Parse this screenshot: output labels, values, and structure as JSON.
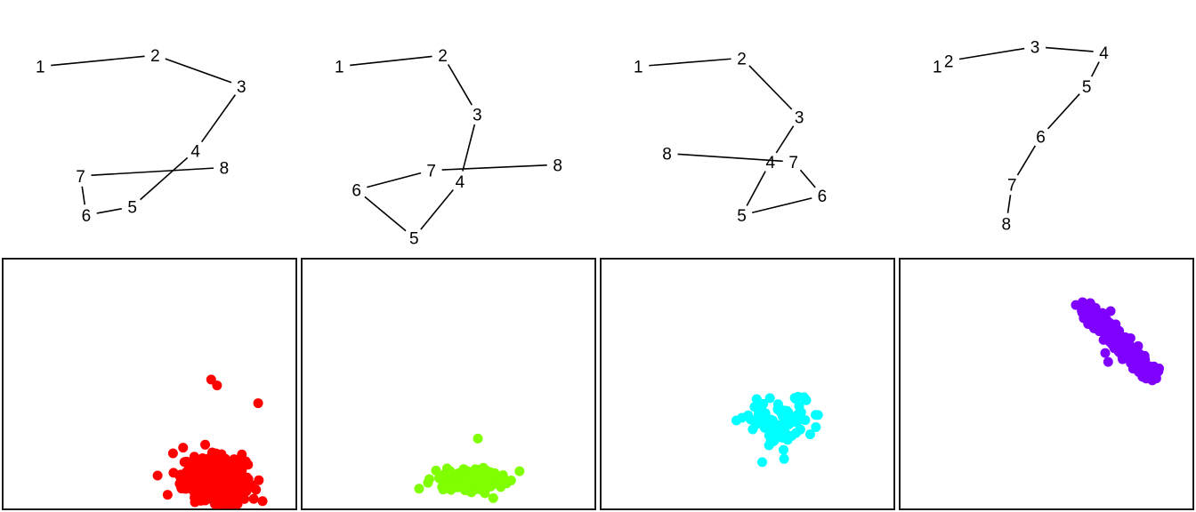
{
  "chart_data": [
    {
      "type": "line",
      "points": [
        {
          "label": "1",
          "x": 1.0,
          "y": 1.0
        },
        {
          "label": "2",
          "x": 3.0,
          "y": 1.4
        },
        {
          "label": "3",
          "x": 4.5,
          "y": 0.3
        },
        {
          "label": "4",
          "x": 3.7,
          "y": -2.0
        },
        {
          "label": "5",
          "x": 2.6,
          "y": -4.0
        },
        {
          "label": "6",
          "x": 1.8,
          "y": -4.3
        },
        {
          "label": "7",
          "x": 1.7,
          "y": -2.9
        },
        {
          "label": "8",
          "x": 4.2,
          "y": -2.6
        }
      ]
    },
    {
      "type": "line",
      "points": [
        {
          "label": "1",
          "x": 1.0,
          "y": 1.0
        },
        {
          "label": "2",
          "x": 2.8,
          "y": 1.4
        },
        {
          "label": "3",
          "x": 3.4,
          "y": -0.7
        },
        {
          "label": "4",
          "x": 3.1,
          "y": -3.1
        },
        {
          "label": "5",
          "x": 2.3,
          "y": -5.1
        },
        {
          "label": "6",
          "x": 1.3,
          "y": -3.4
        },
        {
          "label": "7",
          "x": 2.6,
          "y": -2.7
        },
        {
          "label": "8",
          "x": 4.8,
          "y": -2.5
        }
      ]
    },
    {
      "type": "line",
      "points": [
        {
          "label": "1",
          "x": 1.0,
          "y": 1.0
        },
        {
          "label": "2",
          "x": 2.8,
          "y": 1.3
        },
        {
          "label": "3",
          "x": 3.8,
          "y": -0.8
        },
        {
          "label": "4",
          "x": 3.3,
          "y": -2.4
        },
        {
          "label": "5",
          "x": 2.8,
          "y": -4.3
        },
        {
          "label": "6",
          "x": 4.2,
          "y": -3.6
        },
        {
          "label": "7",
          "x": 3.7,
          "y": -2.4
        },
        {
          "label": "8",
          "x": 1.5,
          "y": -2.1
        }
      ]
    },
    {
      "type": "line",
      "points": [
        {
          "label": "1",
          "x": 1.0,
          "y": 1.0
        },
        {
          "label": "2",
          "x": 1.2,
          "y": 1.2
        },
        {
          "label": "3",
          "x": 2.7,
          "y": 1.7
        },
        {
          "label": "4",
          "x": 3.9,
          "y": 1.5
        },
        {
          "label": "5",
          "x": 3.6,
          "y": 0.3
        },
        {
          "label": "6",
          "x": 2.8,
          "y": -1.5
        },
        {
          "label": "7",
          "x": 2.3,
          "y": -3.2
        },
        {
          "label": "8",
          "x": 2.2,
          "y": -4.6
        }
      ]
    },
    {
      "type": "scatter",
      "color": "#ff0000",
      "xlim": [
        0,
        10
      ],
      "ylim": [
        0,
        8.5
      ],
      "cluster": {
        "center": [
          7.2,
          1.0
        ],
        "spread": [
          1.1,
          0.8
        ],
        "count": 360
      },
      "outliers": [
        [
          7.1,
          4.4
        ],
        [
          5.8,
          1.9
        ],
        [
          7.3,
          4.2
        ],
        [
          6.9,
          0.3
        ],
        [
          8.7,
          3.6
        ]
      ]
    },
    {
      "type": "scatter",
      "color": "#7fff00",
      "xlim": [
        0,
        10
      ],
      "ylim": [
        0,
        8.5
      ],
      "cluster": {
        "center": [
          5.9,
          1.0
        ],
        "spread": [
          1.0,
          0.35
        ],
        "count": 260
      },
      "outliers": [
        [
          4.0,
          0.7
        ],
        [
          6.0,
          2.4
        ],
        [
          4.3,
          0.9
        ]
      ]
    },
    {
      "type": "scatter",
      "color": "#00ffff",
      "xlim": [
        0,
        10
      ],
      "ylim": [
        0,
        8.5
      ],
      "cluster": {
        "center": [
          6.1,
          3.0
        ],
        "spread": [
          1.1,
          0.8
        ],
        "count": 95
      },
      "outliers": [
        [
          5.5,
          1.6
        ],
        [
          7.0,
          3.7
        ],
        [
          7.4,
          3.2
        ]
      ]
    },
    {
      "type": "scatter",
      "color": "#7f00ff",
      "xlim": [
        0,
        10
      ],
      "ylim": [
        0,
        8.5
      ],
      "band": {
        "start": [
          6.3,
          6.9
        ],
        "end": [
          8.6,
          4.5
        ],
        "width": 0.45,
        "count": 230
      },
      "outliers": [
        [
          7.1,
          5.0
        ],
        [
          7.0,
          5.3
        ],
        [
          8.4,
          4.6
        ]
      ]
    }
  ]
}
